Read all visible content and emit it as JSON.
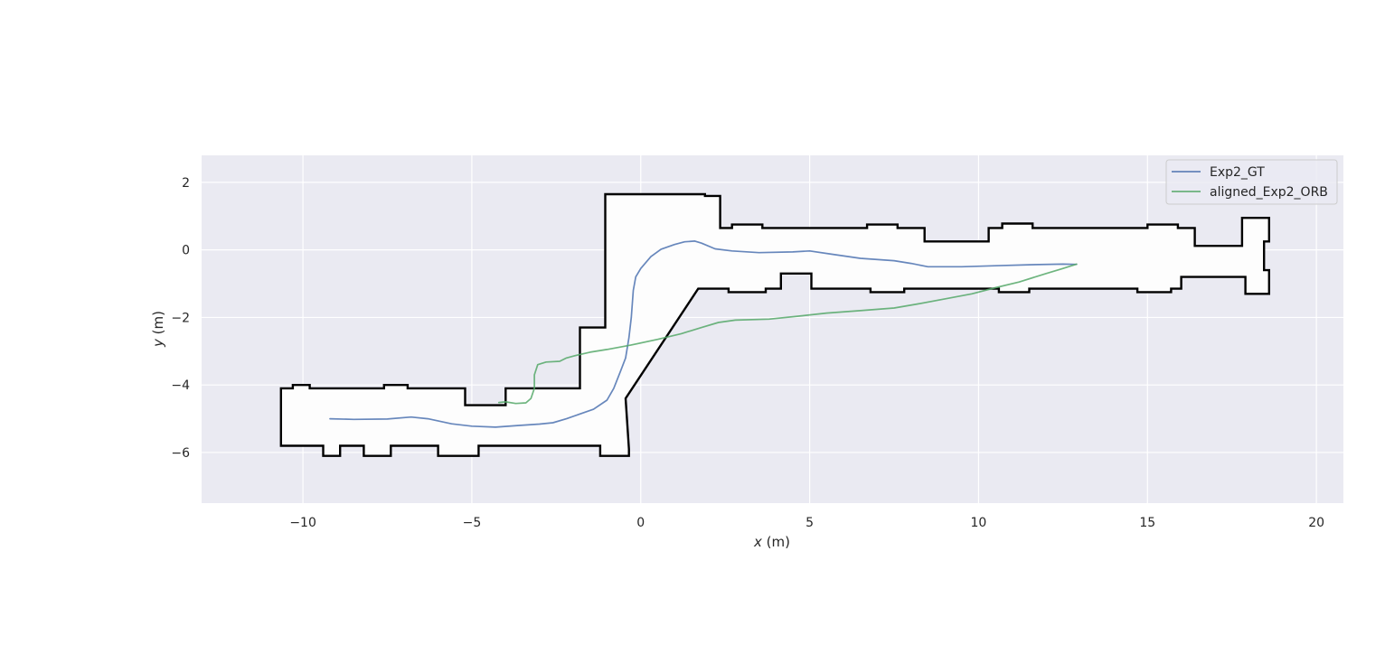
{
  "chart_data": {
    "type": "line",
    "title": "",
    "xlabel": {
      "var": "x",
      "unit": " (m)"
    },
    "ylabel": {
      "var": "y",
      "unit": " (m)"
    },
    "xlim": [
      -13.0,
      20.8
    ],
    "ylim": [
      -7.5,
      2.8
    ],
    "xticks": [
      -10,
      -5,
      0,
      5,
      10,
      15,
      20
    ],
    "xtick_labels": [
      "−10",
      "−5",
      "0",
      "5",
      "10",
      "15",
      "20"
    ],
    "yticks": [
      2,
      0,
      -2,
      -4,
      -6
    ],
    "ytick_labels": [
      "2",
      "0",
      "−2",
      "−4",
      "−6"
    ],
    "grid": true,
    "legend_position": "top-right",
    "series": [
      {
        "name": "Exp2_GT",
        "color": "#4C72B0",
        "points": [
          [
            -9.2,
            -5.0
          ],
          [
            -8.5,
            -5.02
          ],
          [
            -7.5,
            -5.01
          ],
          [
            -6.8,
            -4.95
          ],
          [
            -6.3,
            -5.0
          ],
          [
            -5.6,
            -5.15
          ],
          [
            -5.0,
            -5.22
          ],
          [
            -4.3,
            -5.25
          ],
          [
            -3.6,
            -5.2
          ],
          [
            -3.0,
            -5.16
          ],
          [
            -2.6,
            -5.12
          ],
          [
            -2.2,
            -5.0
          ],
          [
            -1.8,
            -4.86
          ],
          [
            -1.4,
            -4.72
          ],
          [
            -1.0,
            -4.45
          ],
          [
            -0.8,
            -4.1
          ],
          [
            -0.6,
            -3.6
          ],
          [
            -0.45,
            -3.2
          ],
          [
            -0.35,
            -2.6
          ],
          [
            -0.28,
            -2.0
          ],
          [
            -0.22,
            -1.2
          ],
          [
            -0.15,
            -0.8
          ],
          [
            0.0,
            -0.55
          ],
          [
            0.3,
            -0.2
          ],
          [
            0.6,
            0.02
          ],
          [
            1.0,
            0.16
          ],
          [
            1.3,
            0.24
          ],
          [
            1.6,
            0.26
          ],
          [
            1.8,
            0.2
          ],
          [
            2.2,
            0.03
          ],
          [
            2.7,
            -0.03
          ],
          [
            3.5,
            -0.08
          ],
          [
            4.5,
            -0.06
          ],
          [
            5.0,
            -0.03
          ],
          [
            5.6,
            -0.12
          ],
          [
            6.5,
            -0.25
          ],
          [
            7.5,
            -0.32
          ],
          [
            8.0,
            -0.4
          ],
          [
            8.5,
            -0.5
          ],
          [
            9.5,
            -0.5
          ],
          [
            10.5,
            -0.47
          ],
          [
            11.5,
            -0.44
          ],
          [
            12.5,
            -0.42
          ],
          [
            12.9,
            -0.43
          ]
        ]
      },
      {
        "name": "aligned_Exp2_ORB",
        "color": "#55A868",
        "points": [
          [
            -4.2,
            -4.52
          ],
          [
            -4.0,
            -4.5
          ],
          [
            -3.7,
            -4.55
          ],
          [
            -3.4,
            -4.53
          ],
          [
            -3.25,
            -4.4
          ],
          [
            -3.15,
            -4.1
          ],
          [
            -3.15,
            -3.7
          ],
          [
            -3.05,
            -3.4
          ],
          [
            -2.8,
            -3.32
          ],
          [
            -2.4,
            -3.3
          ],
          [
            -2.2,
            -3.2
          ],
          [
            -1.9,
            -3.12
          ],
          [
            -1.5,
            -3.03
          ],
          [
            -1.0,
            -2.95
          ],
          [
            -0.3,
            -2.82
          ],
          [
            0.5,
            -2.65
          ],
          [
            1.2,
            -2.48
          ],
          [
            1.8,
            -2.3
          ],
          [
            2.3,
            -2.15
          ],
          [
            2.8,
            -2.08
          ],
          [
            3.8,
            -2.05
          ],
          [
            4.8,
            -1.95
          ],
          [
            5.5,
            -1.87
          ],
          [
            6.5,
            -1.8
          ],
          [
            7.5,
            -1.72
          ],
          [
            8.2,
            -1.6
          ],
          [
            9.0,
            -1.45
          ],
          [
            9.8,
            -1.3
          ],
          [
            10.5,
            -1.12
          ],
          [
            11.2,
            -0.95
          ],
          [
            12.0,
            -0.7
          ],
          [
            12.5,
            -0.55
          ],
          [
            12.9,
            -0.42
          ]
        ]
      }
    ],
    "map_outline": {
      "color": "#000000",
      "polygon": [
        [
          -10.65,
          -4.1
        ],
        [
          -10.3,
          -4.1
        ],
        [
          -10.3,
          -4.0
        ],
        [
          -9.8,
          -4.0
        ],
        [
          -9.8,
          -4.1
        ],
        [
          -7.6,
          -4.1
        ],
        [
          -7.6,
          -4.0
        ],
        [
          -6.9,
          -4.0
        ],
        [
          -6.9,
          -4.1
        ],
        [
          -5.2,
          -4.1
        ],
        [
          -5.2,
          -4.6
        ],
        [
          -4.0,
          -4.6
        ],
        [
          -4.0,
          -4.1
        ],
        [
          -1.8,
          -4.1
        ],
        [
          -1.8,
          -2.3
        ],
        [
          -1.05,
          -2.3
        ],
        [
          -1.05,
          1.65
        ],
        [
          1.9,
          1.65
        ],
        [
          1.9,
          1.6
        ],
        [
          2.35,
          1.6
        ],
        [
          2.35,
          0.65
        ],
        [
          2.7,
          0.65
        ],
        [
          2.7,
          0.75
        ],
        [
          3.6,
          0.75
        ],
        [
          3.6,
          0.65
        ],
        [
          6.7,
          0.65
        ],
        [
          6.7,
          0.75
        ],
        [
          7.6,
          0.75
        ],
        [
          7.6,
          0.65
        ],
        [
          8.4,
          0.65
        ],
        [
          8.4,
          0.25
        ],
        [
          10.3,
          0.25
        ],
        [
          10.3,
          0.65
        ],
        [
          10.7,
          0.65
        ],
        [
          10.7,
          0.78
        ],
        [
          11.6,
          0.78
        ],
        [
          11.6,
          0.65
        ],
        [
          15.0,
          0.65
        ],
        [
          15.0,
          0.75
        ],
        [
          15.9,
          0.75
        ],
        [
          15.9,
          0.65
        ],
        [
          16.4,
          0.65
        ],
        [
          16.4,
          0.12
        ],
        [
          17.8,
          0.12
        ],
        [
          17.8,
          0.95
        ],
        [
          18.6,
          0.95
        ],
        [
          18.6,
          0.25
        ],
        [
          18.45,
          0.25
        ],
        [
          18.45,
          -0.6
        ],
        [
          18.6,
          -0.6
        ],
        [
          18.6,
          -1.3
        ],
        [
          17.9,
          -1.3
        ],
        [
          17.9,
          -0.8
        ],
        [
          16.0,
          -0.8
        ],
        [
          16.0,
          -1.15
        ],
        [
          15.7,
          -1.15
        ],
        [
          15.7,
          -1.25
        ],
        [
          14.7,
          -1.25
        ],
        [
          14.7,
          -1.15
        ],
        [
          11.5,
          -1.15
        ],
        [
          11.5,
          -1.25
        ],
        [
          10.6,
          -1.25
        ],
        [
          10.6,
          -1.15
        ],
        [
          7.8,
          -1.15
        ],
        [
          7.8,
          -1.25
        ],
        [
          6.8,
          -1.25
        ],
        [
          6.8,
          -1.15
        ],
        [
          5.05,
          -1.15
        ],
        [
          5.05,
          -0.7
        ],
        [
          4.15,
          -0.7
        ],
        [
          4.15,
          -1.15
        ],
        [
          3.7,
          -1.15
        ],
        [
          3.7,
          -1.25
        ],
        [
          2.6,
          -1.25
        ],
        [
          2.6,
          -1.15
        ],
        [
          1.7,
          -1.15
        ],
        [
          -0.45,
          -4.4
        ],
        [
          -0.35,
          -5.9
        ],
        [
          -0.35,
          -6.1
        ],
        [
          -1.2,
          -6.1
        ],
        [
          -1.2,
          -5.8
        ],
        [
          -4.8,
          -5.8
        ],
        [
          -4.8,
          -6.1
        ],
        [
          -6.0,
          -6.1
        ],
        [
          -6.0,
          -5.8
        ],
        [
          -7.4,
          -5.8
        ],
        [
          -7.4,
          -6.1
        ],
        [
          -8.2,
          -6.1
        ],
        [
          -8.2,
          -5.8
        ],
        [
          -8.9,
          -5.8
        ],
        [
          -8.9,
          -6.1
        ],
        [
          -9.4,
          -6.1
        ],
        [
          -9.4,
          -5.8
        ],
        [
          -10.65,
          -5.8
        ]
      ]
    }
  }
}
